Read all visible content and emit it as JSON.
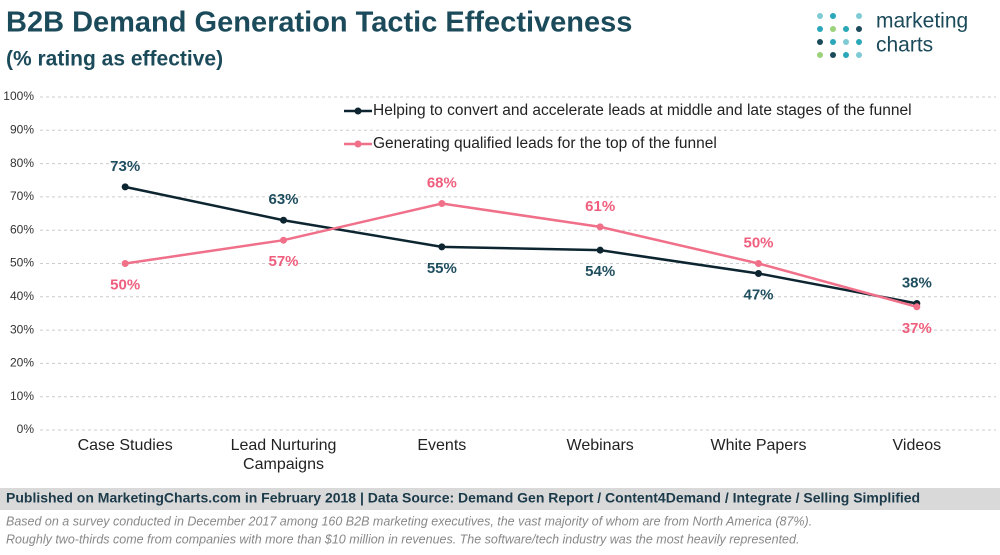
{
  "chart_data": {
    "type": "line",
    "title": "B2B Demand Generation Tactic Effectiveness",
    "subtitle": "(% rating as effective)",
    "categories": [
      "Case Studies",
      "Lead Nurturing Campaigns",
      "Events",
      "Webinars",
      "White Papers",
      "Videos"
    ],
    "series": [
      {
        "name": "Helping to convert and accelerate leads at middle and late stages of the funnel",
        "color": "#0d2530",
        "label_color": "#1f4e5f",
        "values": [
          73,
          63,
          55,
          54,
          47,
          38
        ],
        "value_labels": [
          "73%",
          "63%",
          "55%",
          "54%",
          "47%",
          "38%"
        ]
      },
      {
        "name": "Generating qualified leads for the top of the funnel",
        "color": "#f0708a",
        "label_color": "#ef5f7d",
        "values": [
          50,
          57,
          68,
          61,
          50,
          37
        ],
        "value_labels": [
          "50%",
          "57%",
          "68%",
          "61%",
          "50%",
          "37%"
        ]
      }
    ],
    "ylim": [
      0,
      100
    ],
    "yticks": [
      {
        "value": 0,
        "label": "0%"
      },
      {
        "value": 10,
        "label": "10%"
      },
      {
        "value": 20,
        "label": "20%"
      },
      {
        "value": 30,
        "label": "30%"
      },
      {
        "value": 40,
        "label": "40%"
      },
      {
        "value": 50,
        "label": "50%"
      },
      {
        "value": 60,
        "label": "60%"
      },
      {
        "value": 70,
        "label": "70%"
      },
      {
        "value": 80,
        "label": "80%"
      },
      {
        "value": 90,
        "label": "90%"
      },
      {
        "value": 100,
        "label": "100%"
      }
    ],
    "grid": true
  },
  "branding": {
    "logo_lines": [
      "marketing",
      "charts"
    ]
  },
  "footer": {
    "published": "Published on MarketingCharts.com in February 2018 | Data Source: Demand Gen Report / Content4Demand / Integrate / Selling Simplified",
    "notes": [
      "Based on a survey conducted in December 2017 among 160 B2B marketing executives, the vast majority of whom are from North America (87%).",
      "Roughly two-thirds come from companies with more than $10 million in revenues. The software/tech industry was the most heavily represented."
    ]
  }
}
